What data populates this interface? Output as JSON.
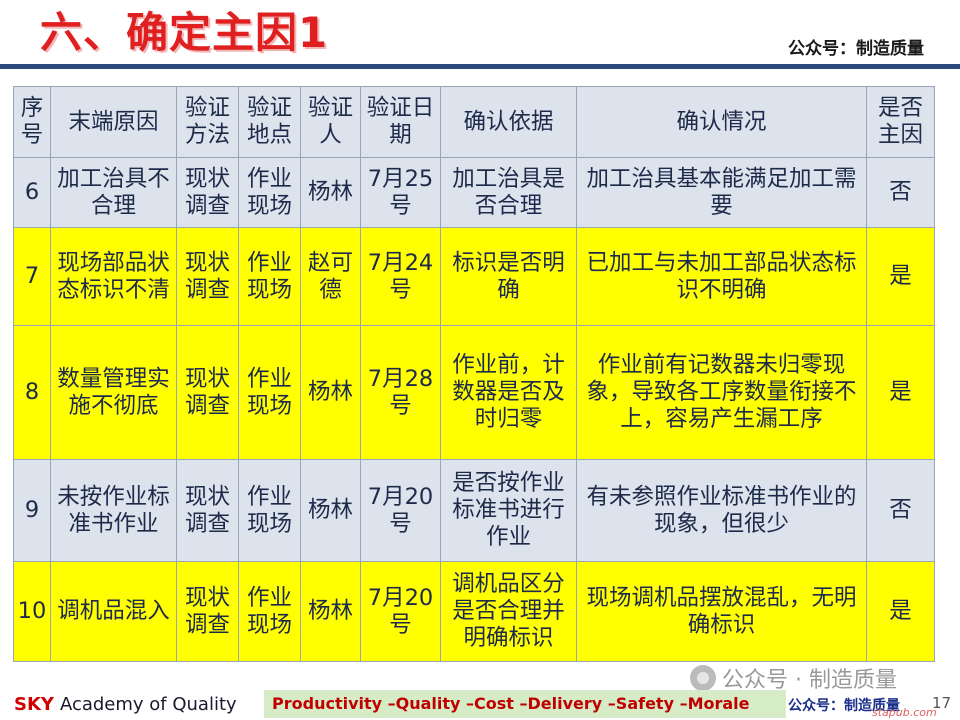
{
  "header": {
    "title": "六、确定主因1",
    "brand": "公众号：制造质量"
  },
  "table": {
    "headers": [
      "序号",
      "末端原因",
      "验证方法",
      "验证地点",
      "验证人",
      "验证日期",
      "确认依据",
      "确认情况",
      "是否主因"
    ],
    "rows": [
      {
        "no": "6",
        "cause": "加工治具不合理",
        "method": "现状调查",
        "place": "作业现场",
        "person": "杨林",
        "date": "7月25号",
        "basis": "加工治具是否合理",
        "status": "加工治具基本能满足加工需要",
        "main": "否",
        "highlight": false
      },
      {
        "no": "7",
        "cause": "现场部品状态标识不清",
        "method": "现状调查",
        "place": "作业现场",
        "person": "赵可德",
        "date": "7月24号",
        "basis": "标识是否明确",
        "status": "已加工与未加工部品状态标识不明确",
        "main": "是",
        "highlight": true
      },
      {
        "no": "8",
        "cause": "数量管理实施不彻底",
        "method": "现状调查",
        "place": "作业现场",
        "person": "杨林",
        "date": "7月28号",
        "basis": "作业前，计数器是否及时归零",
        "status": "作业前有记数器未归零现象，导致各工序数量衔接不上，容易产生漏工序",
        "main": "是",
        "highlight": true
      },
      {
        "no": "9",
        "cause": "未按作业标准书作业",
        "method": "现状调查",
        "place": "作业现场",
        "person": "杨林",
        "date": "7月20号",
        "basis": "是否按作业标准书进行作业",
        "status": "有未参照作业标准书作业的现象，但很少",
        "main": "否",
        "highlight": false
      },
      {
        "no": "10",
        "cause": "调机品混入",
        "method": "现状调查",
        "place": "作业现场",
        "person": "杨林",
        "date": "7月20号",
        "basis": "调机品区分是否合理并明确标识",
        "status": "现场调机品摆放混乱，无明确标识",
        "main": "是",
        "highlight": true
      }
    ]
  },
  "watermark": "公众号 · 制造质量",
  "footer": {
    "brand_sky": "SKY",
    "brand_rest": "Academy of Quality",
    "slogan": "Productivity –Quality –Cost –Delivery –Safety –Morale",
    "account": "公众号：制造质量",
    "page": "17",
    "site": "stapub.com"
  },
  "colors": {
    "title": "#e02020",
    "rule": "#2c4a7c",
    "row_plain": "#dde3ec",
    "row_highlight": "#ffff00",
    "slogan_bg": "#d6ecc6",
    "slogan_text": "#c00000"
  }
}
